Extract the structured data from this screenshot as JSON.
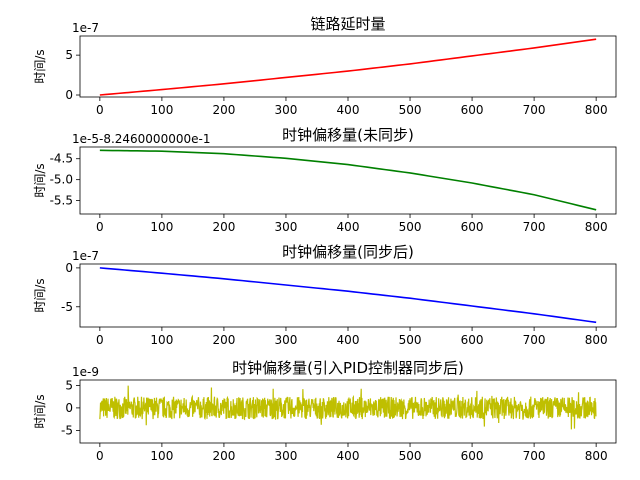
{
  "chart_data": [
    {
      "type": "line",
      "title": "链路延时量",
      "ylabel": "时间/s",
      "offset_text": "1e-7",
      "color": "#ff0000",
      "xlim": [
        -32,
        832
      ],
      "ylim": [
        -0.25,
        7.4
      ],
      "xticks": [
        0,
        100,
        200,
        300,
        400,
        500,
        600,
        700,
        800
      ],
      "yticks": [
        0,
        5
      ],
      "ytick_labels": [
        "0",
        "5"
      ],
      "series": [
        {
          "x": [
            0,
            100,
            200,
            300,
            400,
            500,
            600,
            700,
            800
          ],
          "y": [
            0.0,
            0.68,
            1.4,
            2.2,
            3.0,
            3.9,
            4.9,
            5.9,
            7.0
          ]
        }
      ]
    },
    {
      "type": "line",
      "title": "时钟偏移量(未同步)",
      "ylabel": "时间/s",
      "offset_text": "1e-5-8.2460000000e-1",
      "color": "#008000",
      "xlim": [
        -32,
        832
      ],
      "ylim": [
        -5.82,
        -4.22
      ],
      "xticks": [
        0,
        100,
        200,
        300,
        400,
        500,
        600,
        700,
        800
      ],
      "yticks": [
        -4.5,
        -5.0,
        -5.5
      ],
      "ytick_labels": [
        "-4.5",
        "-5.0",
        "-5.5"
      ],
      "series": [
        {
          "x": [
            0,
            100,
            200,
            300,
            400,
            500,
            600,
            700,
            800
          ],
          "y": [
            -4.3,
            -4.32,
            -4.38,
            -4.49,
            -4.64,
            -4.84,
            -5.08,
            -5.36,
            -5.72
          ]
        }
      ]
    },
    {
      "type": "line",
      "title": "时钟偏移量(同步后)",
      "ylabel": "时间/s",
      "offset_text": "1e-7",
      "color": "#0000ff",
      "xlim": [
        -32,
        832
      ],
      "ylim": [
        -7.6,
        0.5
      ],
      "xticks": [
        0,
        100,
        200,
        300,
        400,
        500,
        600,
        700,
        800
      ],
      "yticks": [
        0,
        -5
      ],
      "ytick_labels": [
        "0",
        "-5"
      ],
      "series": [
        {
          "x": [
            0,
            100,
            200,
            300,
            400,
            500,
            600,
            700,
            800
          ],
          "y": [
            0.0,
            -0.68,
            -1.4,
            -2.2,
            -3.0,
            -3.9,
            -4.9,
            -5.9,
            -7.0
          ]
        }
      ]
    },
    {
      "type": "line",
      "title": "时钟偏移量(引入PID控制器同步后)",
      "ylabel": "时间/s",
      "offset_text": "1e-9",
      "color": "#bfbf00",
      "xlim": [
        -32,
        832
      ],
      "ylim": [
        -7.8,
        6.2
      ],
      "xticks": [
        0,
        100,
        200,
        300,
        400,
        500,
        600,
        700,
        800
      ],
      "yticks": [
        5,
        0,
        -5
      ],
      "ytick_labels": [
        "5",
        "0",
        "-5"
      ],
      "noise": {
        "x_start": 0,
        "x_end": 800,
        "amplitude": 2.5,
        "min": -7.2,
        "max": 5.6
      }
    }
  ]
}
